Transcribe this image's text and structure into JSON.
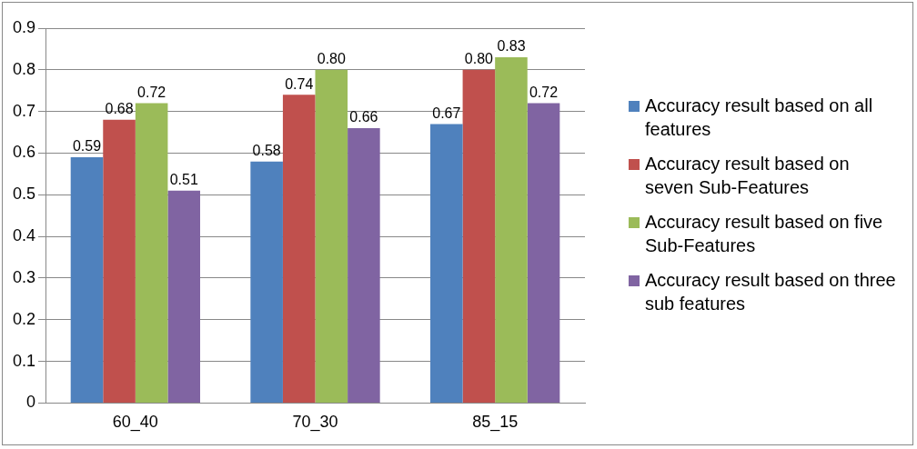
{
  "chart_data": {
    "type": "bar",
    "categories": [
      "60_40",
      "70_30",
      "85_15"
    ],
    "series": [
      {
        "name": "Accuracy result based on all features",
        "color": "#4f81bd",
        "values": [
          0.59,
          0.58,
          0.67
        ],
        "value_labels": [
          "0.59",
          "0.58",
          "0.67"
        ]
      },
      {
        "name": "Accuracy result based on seven Sub-Features",
        "color": "#c0504d",
        "values": [
          0.68,
          0.74,
          0.8
        ],
        "value_labels": [
          "0.68",
          "0.74",
          "0.80"
        ]
      },
      {
        "name": "Accuracy result based on five Sub-Features",
        "color": "#9bbb59",
        "values": [
          0.72,
          0.8,
          0.83
        ],
        "value_labels": [
          "0.72",
          "0.80",
          "0.83"
        ]
      },
      {
        "name": "Accuracy result based on three sub features",
        "color": "#8064a2",
        "values": [
          0.51,
          0.66,
          0.72
        ],
        "value_labels": [
          "0.51",
          "0.66",
          "0.72"
        ]
      }
    ],
    "ylim": [
      0,
      0.9
    ],
    "yticks": [
      0,
      0.1,
      0.2,
      0.3,
      0.4,
      0.5,
      0.6,
      0.7,
      0.8,
      0.9
    ],
    "grid": "y",
    "legend": "right"
  }
}
